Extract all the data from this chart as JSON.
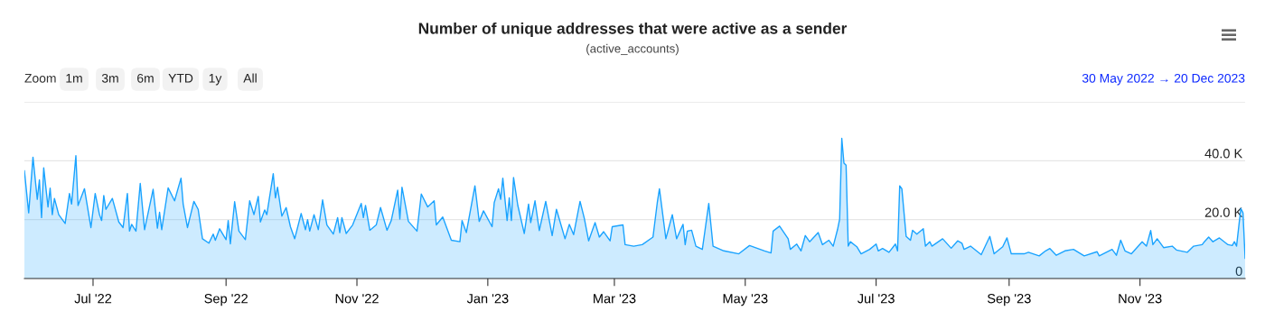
{
  "chart_data": {
    "type": "area",
    "title": "Number of unique addresses that were active as a sender",
    "subtitle": "(active_accounts)",
    "annotations": [
      "Zoom",
      "1m",
      "3m",
      "6m",
      "YTD",
      "1y",
      "All",
      "30 May 2022 → 20 Dec 2023"
    ],
    "x": [
      "2022-05-30",
      "2022-06-01",
      "2022-06-03",
      "2022-06-05",
      "2022-06-06",
      "2022-06-07",
      "2022-06-08",
      "2022-06-10",
      "2022-06-11",
      "2022-06-12",
      "2022-06-13",
      "2022-06-15",
      "2022-06-18",
      "2022-06-20",
      "2022-06-21",
      "2022-06-23",
      "2022-06-24",
      "2022-06-27",
      "2022-06-30",
      "2022-07-02",
      "2022-07-04",
      "2022-07-05",
      "2022-07-06",
      "2022-07-07",
      "2022-07-10",
      "2022-07-13",
      "2022-07-15",
      "2022-07-17",
      "2022-07-18",
      "2022-07-19",
      "2022-07-21",
      "2022-07-23",
      "2022-07-25",
      "2022-07-29",
      "2022-07-31",
      "2022-08-01",
      "2022-08-02",
      "2022-08-05",
      "2022-08-08",
      "2022-08-11",
      "2022-08-12",
      "2022-08-14",
      "2022-08-17",
      "2022-08-19",
      "2022-08-21",
      "2022-08-24",
      "2022-08-26",
      "2022-08-27",
      "2022-08-29",
      "2022-09-01",
      "2022-09-02",
      "2022-09-03",
      "2022-09-05",
      "2022-09-07",
      "2022-09-10",
      "2022-09-12",
      "2022-09-14",
      "2022-09-16",
      "2022-09-17",
      "2022-09-19",
      "2022-09-20",
      "2022-09-23",
      "2022-09-24",
      "2022-09-25",
      "2022-09-27",
      "2022-09-29",
      "2022-10-01",
      "2022-10-03",
      "2022-10-06",
      "2022-10-08",
      "2022-10-09",
      "2022-10-10",
      "2022-10-12",
      "2022-10-14",
      "2022-10-16",
      "2022-10-18",
      "2022-10-21",
      "2022-10-23",
      "2022-10-24",
      "2022-10-25",
      "2022-10-27",
      "2022-10-30",
      "2022-11-03",
      "2022-11-04",
      "2022-11-05",
      "2022-11-07",
      "2022-11-10",
      "2022-11-12",
      "2022-11-15",
      "2022-11-17",
      "2022-11-20",
      "2022-11-21",
      "2022-11-22",
      "2022-11-25",
      "2022-11-29",
      "2022-12-01",
      "2022-12-04",
      "2022-12-07",
      "2022-12-08",
      "2022-12-11",
      "2022-12-15",
      "2022-12-19",
      "2022-12-20",
      "2022-12-22",
      "2022-12-26",
      "2022-12-28",
      "2022-12-30",
      "2023-01-03",
      "2023-01-04",
      "2023-01-06",
      "2023-01-07",
      "2023-01-08",
      "2023-01-10",
      "2023-01-11",
      "2023-01-12",
      "2023-01-13",
      "2023-01-15",
      "2023-01-18",
      "2023-01-20",
      "2023-01-21",
      "2023-01-23",
      "2023-01-25",
      "2023-01-28",
      "2023-01-31",
      "2023-02-02",
      "2023-02-06",
      "2023-02-08",
      "2023-02-10",
      "2023-02-13",
      "2023-02-15",
      "2023-02-17",
      "2023-02-20",
      "2023-02-22",
      "2023-02-24",
      "2023-02-27",
      "2023-02-28",
      "2023-03-05",
      "2023-03-06",
      "2023-03-10",
      "2023-03-14",
      "2023-03-19",
      "2023-03-21",
      "2023-03-22",
      "2023-03-25",
      "2023-03-28",
      "2023-03-30",
      "2023-04-02",
      "2023-04-03",
      "2023-04-04",
      "2023-04-06",
      "2023-04-08",
      "2023-04-11",
      "2023-04-14",
      "2023-04-16",
      "2023-04-21",
      "2023-04-28",
      "2023-05-03",
      "2023-05-10",
      "2023-05-13",
      "2023-05-14",
      "2023-05-17",
      "2023-05-21",
      "2023-05-22",
      "2023-05-25",
      "2023-05-27",
      "2023-05-29",
      "2023-05-31",
      "2023-06-04",
      "2023-06-06",
      "2023-06-09",
      "2023-06-11",
      "2023-06-13",
      "2023-06-14",
      "2023-06-15",
      "2023-06-16",
      "2023-06-17",
      "2023-06-18",
      "2023-06-19",
      "2023-06-22",
      "2023-06-24",
      "2023-06-28",
      "2023-07-01",
      "2023-07-02",
      "2023-07-04",
      "2023-07-07",
      "2023-07-10",
      "2023-07-11",
      "2023-07-12",
      "2023-07-13",
      "2023-07-15",
      "2023-07-17",
      "2023-07-18",
      "2023-07-20",
      "2023-07-23",
      "2023-07-24",
      "2023-07-26",
      "2023-07-27",
      "2023-08-01",
      "2023-08-05",
      "2023-08-08",
      "2023-08-10",
      "2023-08-11",
      "2023-08-14",
      "2023-08-19",
      "2023-08-23",
      "2023-08-25",
      "2023-08-29",
      "2023-08-31",
      "2023-09-02",
      "2023-09-08",
      "2023-09-10",
      "2023-09-15",
      "2023-09-18",
      "2023-09-20",
      "2023-09-23",
      "2023-09-27",
      "2023-10-01",
      "2023-10-06",
      "2023-10-12",
      "2023-10-13",
      "2023-10-19",
      "2023-10-21",
      "2023-10-23",
      "2023-10-25",
      "2023-10-28",
      "2023-11-02",
      "2023-11-04",
      "2023-11-06",
      "2023-11-07",
      "2023-11-09",
      "2023-11-12",
      "2023-11-16",
      "2023-11-18",
      "2023-11-23",
      "2023-11-26",
      "2023-11-30",
      "2023-12-01",
      "2023-12-03",
      "2023-12-05",
      "2023-12-08",
      "2023-12-12",
      "2023-12-14",
      "2023-12-15",
      "2023-12-16",
      "2023-12-18",
      "2023-12-19",
      "2023-12-20"
    ],
    "series": [
      {
        "color": "#1aa3ff",
        "values": [
          36600,
          22300,
          41200,
          26900,
          33500,
          20700,
          37600,
          24300,
          30700,
          21700,
          27200,
          21700,
          18700,
          28900,
          25300,
          41700,
          24800,
          30500,
          17300,
          28900,
          21700,
          19700,
          28200,
          23500,
          27200,
          19200,
          17300,
          28900,
          16100,
          18400,
          16100,
          32300,
          16600,
          30300,
          17100,
          22500,
          16600,
          30800,
          26400,
          34100,
          25300,
          17300,
          26200,
          23500,
          13500,
          12000,
          15100,
          13000,
          16900,
          13200,
          19700,
          11800,
          26100,
          16100,
          13200,
          26400,
          21700,
          27900,
          19200,
          23300,
          21700,
          35600,
          27400,
          31000,
          21200,
          24100,
          17600,
          13500,
          22100,
          16600,
          20000,
          16100,
          21700,
          16600,
          26700,
          18200,
          15100,
          20700,
          15600,
          20700,
          15300,
          18200,
          25500,
          20700,
          24800,
          16400,
          18200,
          24100,
          16400,
          19700,
          30000,
          20200,
          31000,
          19400,
          16100,
          28700,
          24300,
          26400,
          18200,
          20900,
          13000,
          12500,
          19700,
          15600,
          31500,
          19400,
          23000,
          17600,
          25800,
          30500,
          26900,
          34100,
          19700,
          27400,
          19700,
          34300,
          24800,
          15300,
          25300,
          19000,
          26400,
          16300,
          26200,
          14600,
          23500,
          13500,
          18400,
          14900,
          26200,
          20400,
          12800,
          19000,
          14100,
          15900,
          12800,
          17600,
          18200,
          11500,
          11000,
          11500,
          14100,
          25800,
          30500,
          13500,
          21700,
          13500,
          18400,
          11500,
          16100,
          16400,
          11000,
          9900,
          25500,
          11000,
          9400,
          8400,
          11200,
          9400,
          8700,
          16100,
          17800,
          13500,
          9900,
          11700,
          9400,
          14600,
          12500,
          15600,
          11500,
          13000,
          11000,
          16600,
          20200,
          47600,
          39200,
          38500,
          11000,
          12500,
          10800,
          8400,
          9900,
          11700,
          9400,
          10200,
          8900,
          11700,
          9400,
          31500,
          30500,
          14300,
          13000,
          16400,
          15100,
          16900,
          11000,
          12500,
          11000,
          13500,
          10300,
          12800,
          12000,
          9900,
          11000,
          8100,
          14300,
          8400,
          10800,
          13800,
          8400,
          8400,
          8900,
          7700,
          9400,
          10200,
          7900,
          9400,
          9900,
          7700,
          9100,
          7700,
          9900,
          7900,
          13000,
          9400,
          8400,
          12500,
          11000,
          16300,
          11500,
          13500,
          10500,
          11000,
          9700,
          8900,
          11000,
          11500,
          12500,
          14100,
          12500,
          13800,
          11500,
          11200,
          12500,
          11000,
          23800,
          22300,
          6900
        ]
      }
    ],
    "xlim": [
      "2022-05-30",
      "2023-12-20"
    ],
    "xticks": [
      {
        "value": "2022-07-01",
        "label": "Jul '22"
      },
      {
        "value": "2022-09-01",
        "label": "Sep '22"
      },
      {
        "value": "2022-11-01",
        "label": "Nov '22"
      },
      {
        "value": "2023-01-01",
        "label": "Jan '23"
      },
      {
        "value": "2023-03-01",
        "label": "Mar '23"
      },
      {
        "value": "2023-05-01",
        "label": "May '23"
      },
      {
        "value": "2023-07-01",
        "label": "Jul '23"
      },
      {
        "value": "2023-09-01",
        "label": "Sep '23"
      },
      {
        "value": "2023-11-01",
        "label": "Nov '23"
      }
    ],
    "ylim": [
      0,
      60000
    ],
    "yticks": [
      0,
      {
        "value": 20000,
        "label": "20.0 K"
      },
      {
        "value": 40000,
        "label": "40.0 K"
      },
      {
        "value": 60000,
        "label": null
      }
    ],
    "grid": "y"
  }
}
